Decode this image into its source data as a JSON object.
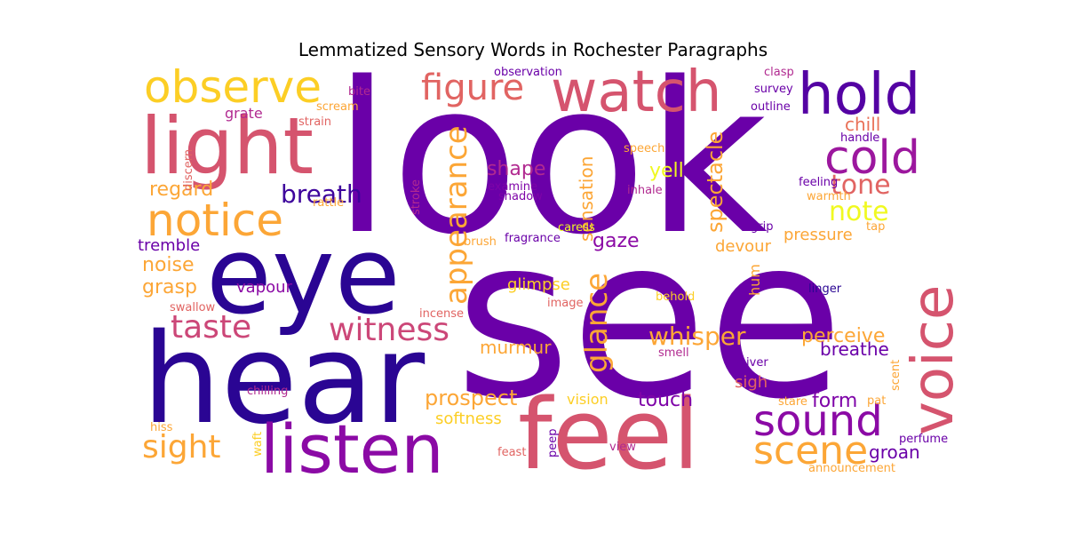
{
  "chart_data": {
    "type": "wordcloud",
    "title": "Lemmatized Sensory Words in Rochester Paragraphs",
    "colormap": "plasma",
    "background": "#ffffff",
    "words": [
      {
        "text": "look",
        "color": "#6a00a8",
        "rotate": 0
      },
      {
        "text": "see",
        "color": "#6a00a8",
        "rotate": 0
      },
      {
        "text": "eye",
        "color": "#2a0593",
        "rotate": 0
      },
      {
        "text": "hear",
        "color": "#2a0593",
        "rotate": 0
      },
      {
        "text": "feel",
        "color": "#d5546e",
        "rotate": 0
      },
      {
        "text": "light",
        "color": "#d5546e",
        "rotate": 0
      },
      {
        "text": "watch",
        "color": "#d5546e",
        "rotate": 0
      },
      {
        "text": "voice",
        "color": "#d5546e",
        "rotate": -90
      },
      {
        "text": "listen",
        "color": "#8b0aa5",
        "rotate": 0
      },
      {
        "text": "hold",
        "color": "#5402a3",
        "rotate": 0
      },
      {
        "text": "observe",
        "color": "#fcce25",
        "rotate": 0
      },
      {
        "text": "notice",
        "color": "#fca636",
        "rotate": 0
      },
      {
        "text": "cold",
        "color": "#9c179e",
        "rotate": 0
      },
      {
        "text": "sound",
        "color": "#8b0aa5",
        "rotate": 0
      },
      {
        "text": "scene",
        "color": "#fca636",
        "rotate": 0
      },
      {
        "text": "figure",
        "color": "#e16462",
        "rotate": 0
      },
      {
        "text": "appearance",
        "color": "#fca636",
        "rotate": -90
      },
      {
        "text": "glance",
        "color": "#fca636",
        "rotate": -90
      },
      {
        "text": "witness",
        "color": "#cc4778",
        "rotate": 0
      },
      {
        "text": "taste",
        "color": "#cc4778",
        "rotate": 0
      },
      {
        "text": "breath",
        "color": "#3e049c",
        "rotate": 0
      },
      {
        "text": "sight",
        "color": "#fca636",
        "rotate": 0
      },
      {
        "text": "whisper",
        "color": "#fca636",
        "rotate": 0
      },
      {
        "text": "tone",
        "color": "#e16462",
        "rotate": 0
      },
      {
        "text": "note",
        "color": "#f0f921",
        "rotate": 0
      },
      {
        "text": "spectacle",
        "color": "#fca636",
        "rotate": -90
      },
      {
        "text": "prospect",
        "color": "#fca636",
        "rotate": 0
      },
      {
        "text": "regard",
        "color": "#fca636",
        "rotate": 0
      },
      {
        "text": "shape",
        "color": "#b12a90",
        "rotate": 0
      },
      {
        "text": "touch",
        "color": "#7e03a8",
        "rotate": 0
      },
      {
        "text": "form",
        "color": "#7e03a8",
        "rotate": 0
      },
      {
        "text": "perceive",
        "color": "#fca636",
        "rotate": 0
      },
      {
        "text": "gaze",
        "color": "#8b0aa5",
        "rotate": 0
      },
      {
        "text": "yell",
        "color": "#f0f921",
        "rotate": 0
      },
      {
        "text": "groan",
        "color": "#6a00a8",
        "rotate": 0
      },
      {
        "text": "breathe",
        "color": "#6a00a8",
        "rotate": 0
      },
      {
        "text": "sensation",
        "color": "#fca636",
        "rotate": -90
      },
      {
        "text": "grasp",
        "color": "#fca636",
        "rotate": 0
      },
      {
        "text": "noise",
        "color": "#fca636",
        "rotate": 0
      },
      {
        "text": "murmur",
        "color": "#fca636",
        "rotate": 0
      },
      {
        "text": "chill",
        "color": "#e97158",
        "rotate": 0
      },
      {
        "text": "pressure",
        "color": "#fca636",
        "rotate": 0
      },
      {
        "text": "devour",
        "color": "#fca636",
        "rotate": 0
      },
      {
        "text": "sigh",
        "color": "#e16462",
        "rotate": 0
      },
      {
        "text": "softness",
        "color": "#fcce25",
        "rotate": 0
      },
      {
        "text": "vapour",
        "color": "#8b0aa5",
        "rotate": 0
      },
      {
        "text": "glimpse",
        "color": "#fcce25",
        "rotate": 0
      },
      {
        "text": "tremble",
        "color": "#6a00a8",
        "rotate": 0
      },
      {
        "text": "grate",
        "color": "#b12a90",
        "rotate": 0
      },
      {
        "text": "vision",
        "color": "#fcce25",
        "rotate": 0
      },
      {
        "text": "hum",
        "color": "#fca636",
        "rotate": -90
      },
      {
        "text": "observation",
        "color": "#6a00a8",
        "rotate": 0
      },
      {
        "text": "clasp",
        "color": "#b12a90",
        "rotate": 0
      },
      {
        "text": "survey",
        "color": "#6a00a8",
        "rotate": 0
      },
      {
        "text": "outline",
        "color": "#6a00a8",
        "rotate": 0
      },
      {
        "text": "bite",
        "color": "#b12a90",
        "rotate": 0
      },
      {
        "text": "scream",
        "color": "#fca636",
        "rotate": 0
      },
      {
        "text": "strain",
        "color": "#e16462",
        "rotate": 0
      },
      {
        "text": "discern",
        "color": "#e16462",
        "rotate": -90
      },
      {
        "text": "rattle",
        "color": "#fca636",
        "rotate": 0
      },
      {
        "text": "stroke",
        "color": "#b12a90",
        "rotate": -90
      },
      {
        "text": "examine",
        "color": "#7e03a8",
        "rotate": 0
      },
      {
        "text": "shadow",
        "color": "#7e03a8",
        "rotate": 0
      },
      {
        "text": "speech",
        "color": "#fca636",
        "rotate": 0
      },
      {
        "text": "inhale",
        "color": "#b12a90",
        "rotate": 0
      },
      {
        "text": "feeling",
        "color": "#6a00a8",
        "rotate": 0
      },
      {
        "text": "warmth",
        "color": "#fca636",
        "rotate": 0
      },
      {
        "text": "handle",
        "color": "#6a00a8",
        "rotate": 0
      },
      {
        "text": "grip",
        "color": "#6a00a8",
        "rotate": 0
      },
      {
        "text": "tap",
        "color": "#fca636",
        "rotate": 0
      },
      {
        "text": "caress",
        "color": "#f0f921",
        "rotate": 0
      },
      {
        "text": "brush",
        "color": "#fca636",
        "rotate": 0
      },
      {
        "text": "fragrance",
        "color": "#6a00a8",
        "rotate": 0
      },
      {
        "text": "swallow",
        "color": "#e16462",
        "rotate": 0
      },
      {
        "text": "incense",
        "color": "#e16462",
        "rotate": 0
      },
      {
        "text": "image",
        "color": "#e16462",
        "rotate": 0
      },
      {
        "text": "behold",
        "color": "#fcce25",
        "rotate": 0
      },
      {
        "text": "linger",
        "color": "#2a0593",
        "rotate": 0
      },
      {
        "text": "smell",
        "color": "#b12a90",
        "rotate": 0
      },
      {
        "text": "shiver",
        "color": "#6a00a8",
        "rotate": 0
      },
      {
        "text": "scent",
        "color": "#fca636",
        "rotate": -90
      },
      {
        "text": "chilling",
        "color": "#b12a90",
        "rotate": 0
      },
      {
        "text": "hiss",
        "color": "#fca636",
        "rotate": 0
      },
      {
        "text": "waft",
        "color": "#fcce25",
        "rotate": -90
      },
      {
        "text": "stare",
        "color": "#fca636",
        "rotate": 0
      },
      {
        "text": "pat",
        "color": "#fca636",
        "rotate": 0
      },
      {
        "text": "feast",
        "color": "#e16462",
        "rotate": 0
      },
      {
        "text": "peep",
        "color": "#6a00a8",
        "rotate": -90
      },
      {
        "text": "view",
        "color": "#b12a90",
        "rotate": 0
      },
      {
        "text": "perfume",
        "color": "#6a00a8",
        "rotate": 0
      },
      {
        "text": "announcement",
        "color": "#fca636",
        "rotate": 0
      }
    ]
  }
}
